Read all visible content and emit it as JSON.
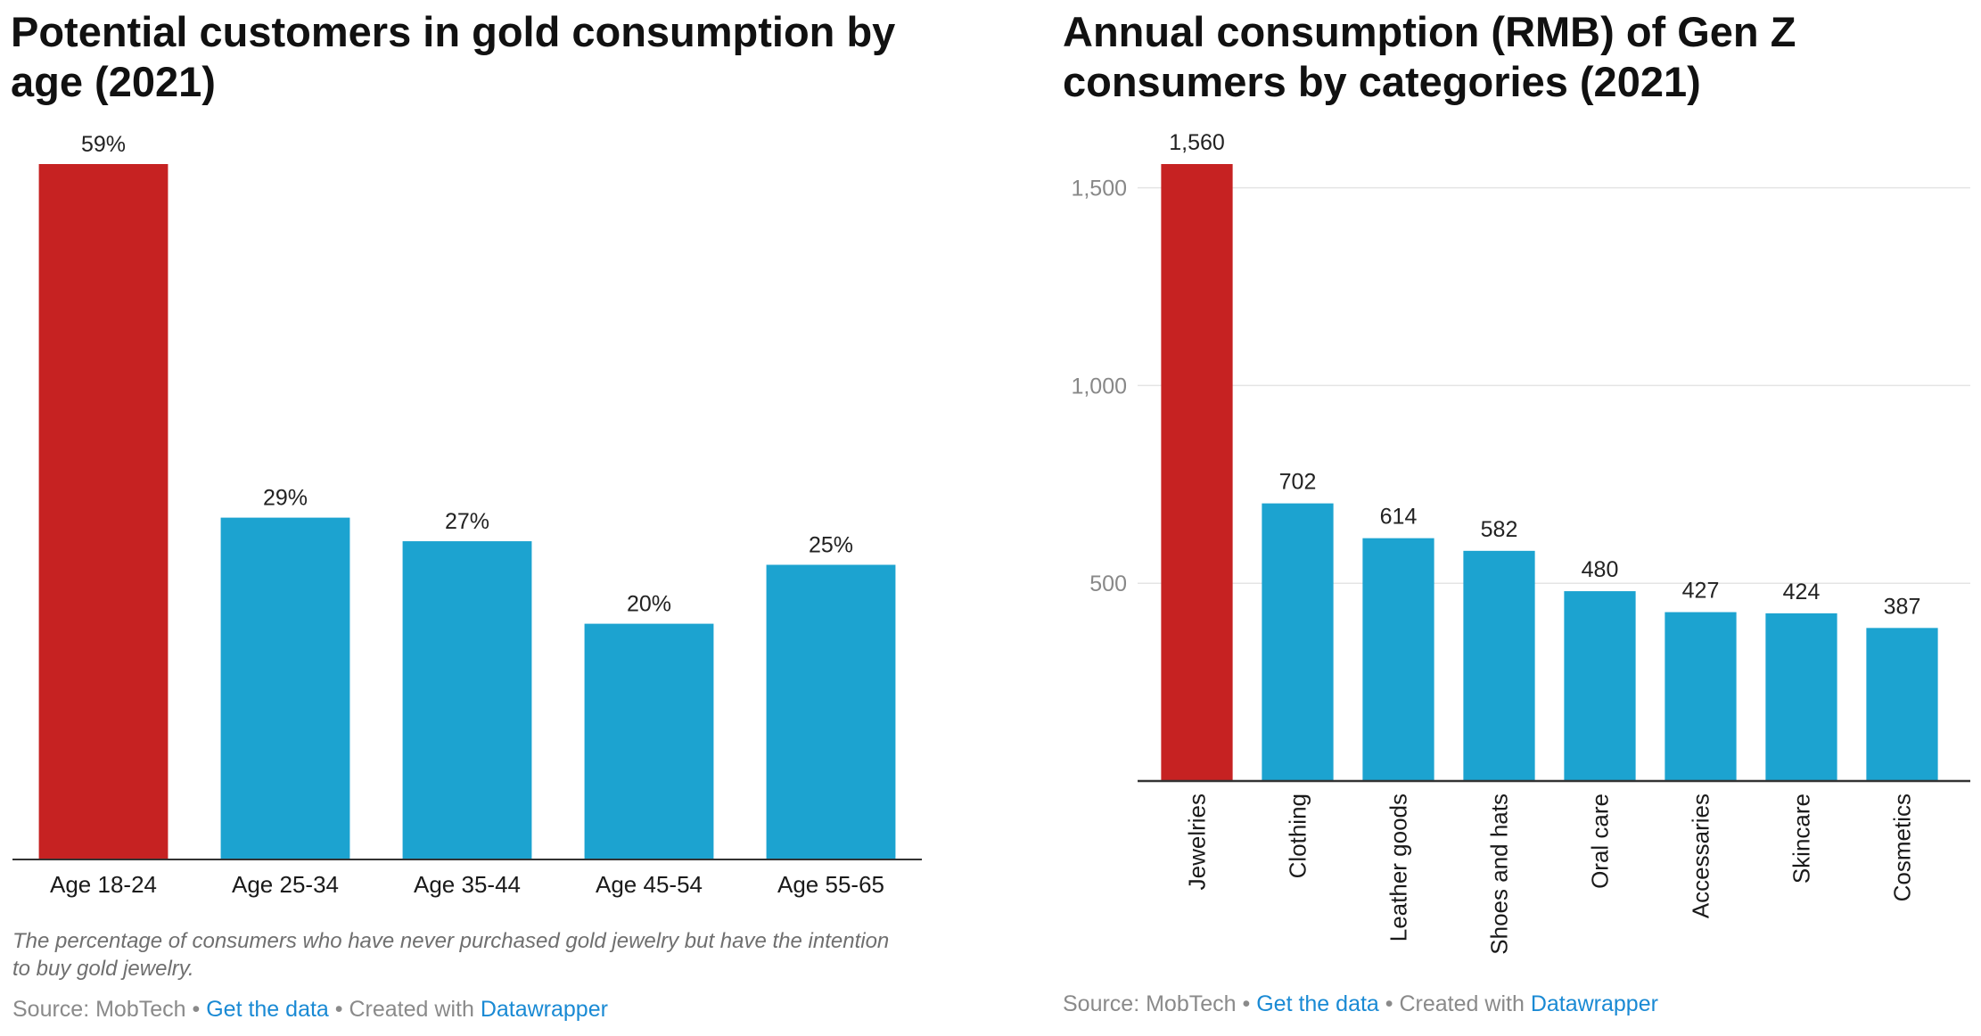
{
  "colors": {
    "highlight": "#c62222",
    "bar": "#1ca3d0",
    "axis": "#333333",
    "grid": "#e4e4e4",
    "link": "#1a8ad4"
  },
  "left_panel": {
    "title": "Potential customers in gold consumption by age (2021)",
    "note": "The percentage of consumers who have never purchased gold jewelry but have the intention to buy gold jewelry.",
    "footer": {
      "source": "Source: MobTech",
      "separator": "•",
      "get_data": "Get the data",
      "created_with": "Created with",
      "tool": "Datawrapper"
    }
  },
  "right_panel": {
    "title": "Annual consumption (RMB) of Gen Z consumers by categories (2021)",
    "footer": {
      "source": "Source: MobTech",
      "separator": "•",
      "get_data": "Get the data",
      "created_with": "Created with",
      "tool": "Datawrapper"
    }
  },
  "chart_data": [
    {
      "type": "bar",
      "title": "Potential customers in gold consumption by age (2021)",
      "categories": [
        "Age 18-24",
        "Age 25-34",
        "Age 35-44",
        "Age 45-54",
        "Age 55-65"
      ],
      "values": [
        59,
        29,
        27,
        20,
        25
      ],
      "value_labels": [
        "59%",
        "29%",
        "27%",
        "20%",
        "25%"
      ],
      "unit": "%",
      "highlight_index": 0,
      "ylim": [
        0,
        59
      ],
      "grid": false
    },
    {
      "type": "bar",
      "title": "Annual consumption (RMB) of Gen Z consumers by categories (2021)",
      "categories": [
        "Jewelries",
        "Clothing",
        "Leather goods",
        "Shoes and hats",
        "Oral care",
        "Accessaries",
        "Skincare",
        "Cosmetics"
      ],
      "values": [
        1560,
        702,
        614,
        582,
        480,
        427,
        424,
        387
      ],
      "value_labels": [
        "1,560",
        "702",
        "614",
        "582",
        "480",
        "427",
        "424",
        "387"
      ],
      "yticks": [
        500,
        1000,
        1500
      ],
      "ytick_labels": [
        "500",
        "1,000",
        "1,500"
      ],
      "highlight_index": 0,
      "ylim": [
        0,
        1560
      ],
      "grid": true,
      "xtick_rotation": "vertical"
    }
  ]
}
